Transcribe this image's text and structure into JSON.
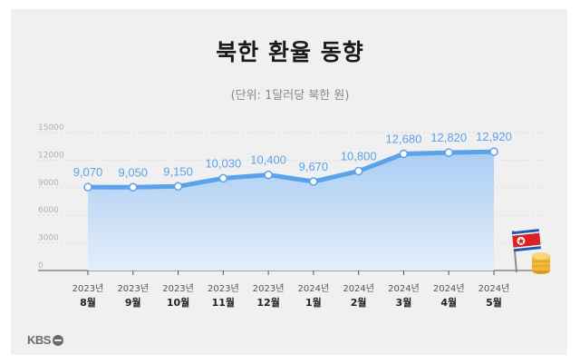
{
  "title": "북한 환율 동향",
  "subtitle": "(단위: 1달러당 북한 원)",
  "logo_text": "KBS",
  "chart_data": {
    "type": "area",
    "title": "북한 환율 동향",
    "subtitle": "(단위: 1달러당 북한 원)",
    "categories": [
      {
        "year": "2023년",
        "month": "8월"
      },
      {
        "year": "2023년",
        "month": "9월"
      },
      {
        "year": "2023년",
        "month": "10월"
      },
      {
        "year": "2023년",
        "month": "11월"
      },
      {
        "year": "2023년",
        "month": "12월"
      },
      {
        "year": "2024년",
        "month": "1월"
      },
      {
        "year": "2024년",
        "month": "2월"
      },
      {
        "year": "2024년",
        "month": "3월"
      },
      {
        "year": "2024년",
        "month": "4월"
      },
      {
        "year": "2024년",
        "month": "5월"
      }
    ],
    "values": [
      9070,
      9050,
      9150,
      10030,
      10400,
      9670,
      10800,
      12680,
      12820,
      12920
    ],
    "value_labels": [
      "9,070",
      "9,050",
      "9,150",
      "10,030",
      "10,400",
      "9,670",
      "10,800",
      "12,680",
      "12,820",
      "12,920"
    ],
    "y_ticks": [
      0,
      3000,
      6000,
      9000,
      12000,
      15000
    ],
    "ylim": [
      0,
      15000
    ],
    "grid": true,
    "colors": {
      "line": "#5aa3ea",
      "area_top": "#a9cdf3",
      "area_bottom": "#e4eefa",
      "marker_fill": "#ffffff",
      "value_label": "#5aa3ea"
    }
  },
  "decor": {
    "flag_icon": "north-korea-flag",
    "coins_icon": "gold-coins"
  }
}
